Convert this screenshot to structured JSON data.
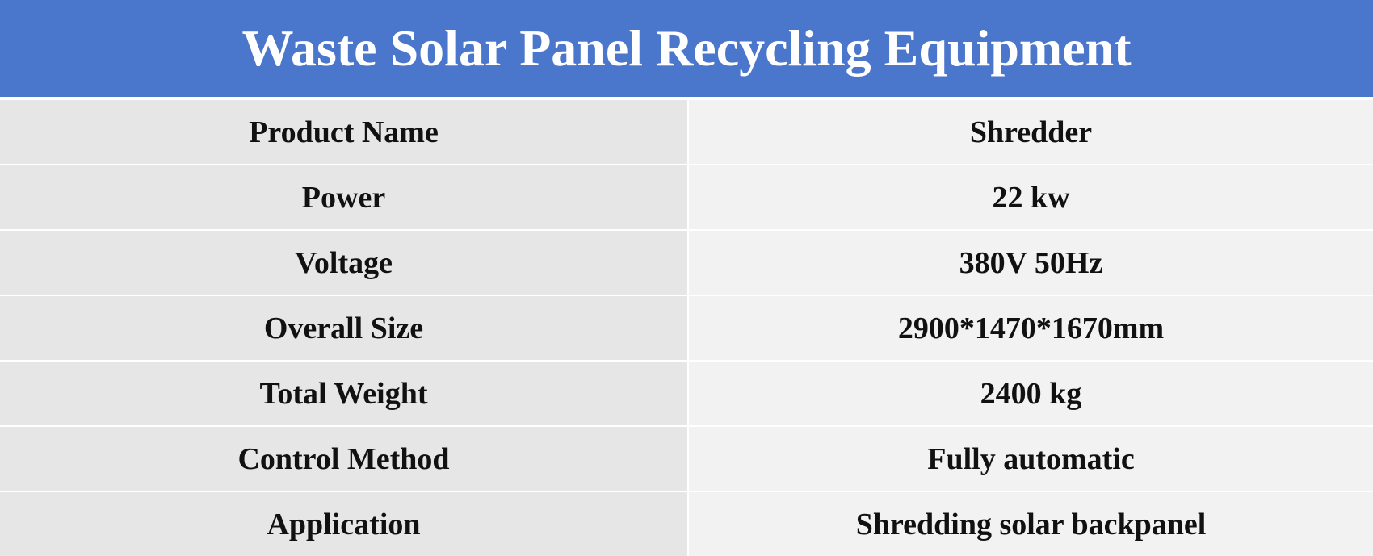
{
  "header": {
    "title": "Waste Solar Panel Recycling Equipment"
  },
  "table": {
    "rows": [
      [
        "Product Name",
        "Shredder"
      ],
      [
        "Power",
        "22 kw"
      ],
      [
        "Voltage",
        "380V 50Hz"
      ],
      [
        "Overall Size",
        "2900*1470*1670mm"
      ],
      [
        "Total Weight",
        "2400 kg"
      ],
      [
        "Control Method",
        "Fully automatic"
      ],
      [
        "Application",
        "Shredding solar backpanel"
      ]
    ]
  }
}
